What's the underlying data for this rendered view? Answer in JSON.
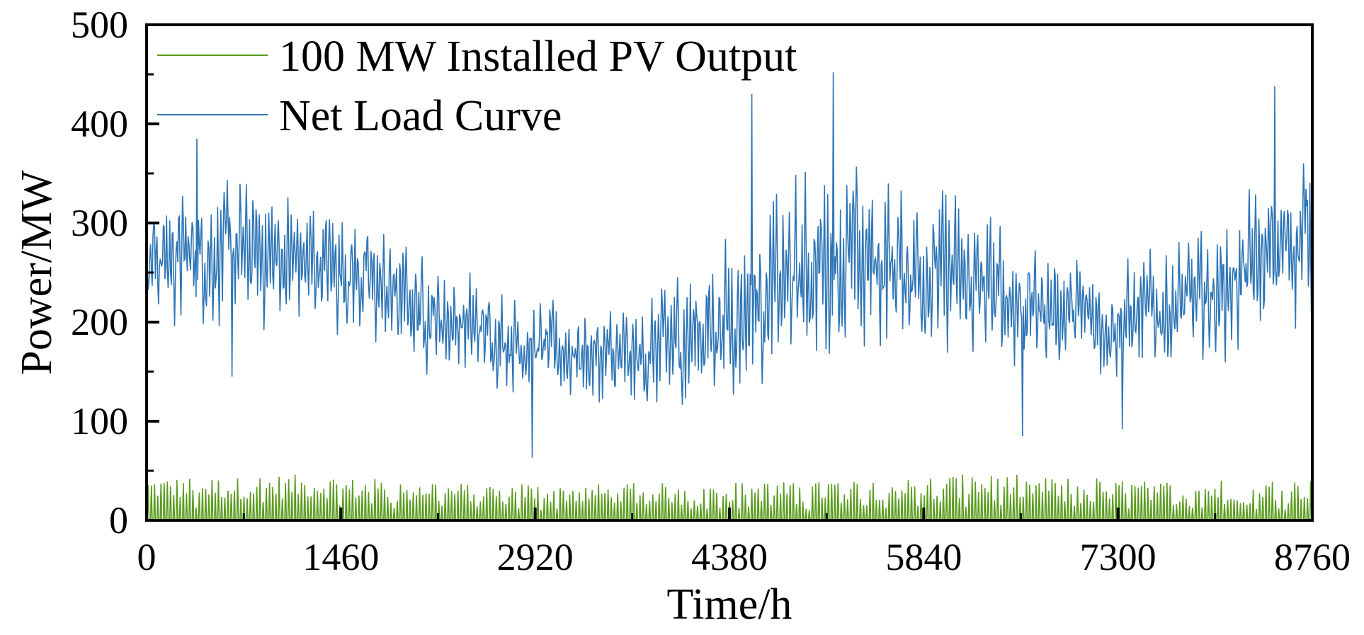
{
  "chart_data": {
    "type": "line",
    "title": "",
    "xlabel": "Time/h",
    "ylabel": "Power/MW",
    "xlim": [
      0,
      8760
    ],
    "ylim": [
      0,
      500
    ],
    "x_ticks": [
      0,
      1460,
      2920,
      4380,
      5840,
      7300,
      8760
    ],
    "y_ticks": [
      0,
      100,
      200,
      300,
      400,
      500
    ],
    "grid": false,
    "legend_position": "top-left",
    "series": [
      {
        "name": "100 MW Installed PV Output",
        "color": "#5a9c1e",
        "sampling": "daily peaks, hourly resolution (24 h period, zero at night)",
        "monthly_typical_daily_peak_mw": [
          38,
          40,
          37,
          33,
          32,
          33,
          34,
          37,
          40,
          38,
          35,
          36
        ]
      },
      {
        "name": "Net Load Curve",
        "color": "#2e75b6",
        "sampling": "hourly, 8760 points",
        "trend_x": [
          0,
          730,
          1460,
          2190,
          2920,
          3650,
          4380,
          5110,
          5840,
          6570,
          7300,
          8030,
          8760
        ],
        "trend_mean_y": [
          265,
          270,
          255,
          205,
          175,
          160,
          205,
          262,
          255,
          220,
          200,
          228,
          295
        ],
        "trend_spread_y": [
          55,
          60,
          55,
          45,
          40,
          45,
          70,
          85,
          75,
          55,
          50,
          55,
          75
        ],
        "extremes": [
          {
            "x": 5160,
            "y": 452
          },
          {
            "x": 4550,
            "y": 430
          },
          {
            "x": 8480,
            "y": 438
          },
          {
            "x": 2900,
            "y": 63
          },
          {
            "x": 6580,
            "y": 85
          },
          {
            "x": 7330,
            "y": 92
          },
          {
            "x": 640,
            "y": 145
          },
          {
            "x": 380,
            "y": 385
          }
        ]
      }
    ]
  }
}
